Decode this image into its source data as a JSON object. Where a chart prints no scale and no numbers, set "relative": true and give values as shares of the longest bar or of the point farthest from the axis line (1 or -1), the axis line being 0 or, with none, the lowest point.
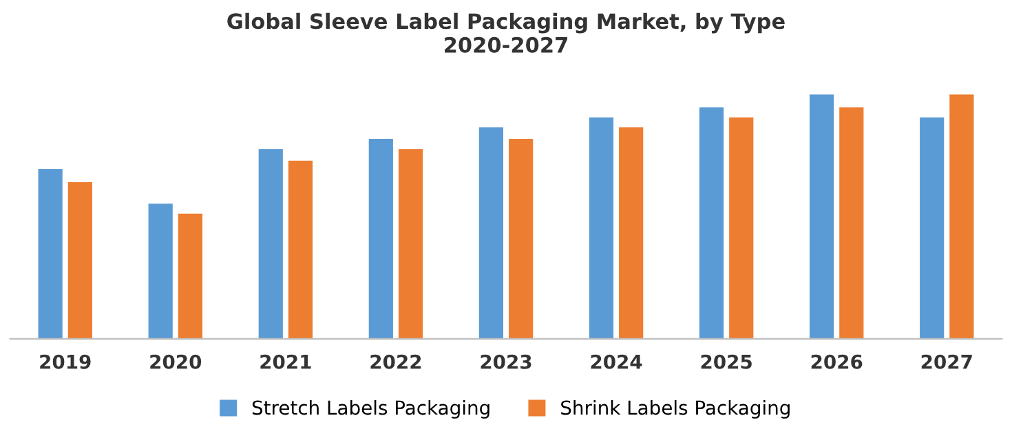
{
  "chart_data": {
    "type": "bar",
    "title": "Global Sleeve Label Packaging Market, by Type\n2020-2027",
    "categories": [
      "2019",
      "2020",
      "2021",
      "2022",
      "2023",
      "2024",
      "2025",
      "2026",
      "2027"
    ],
    "relative": true,
    "legend": "bottom",
    "grid": false,
    "series": [
      {
        "name": "Stretch Labels Packaging",
        "color": "#5b9bd5",
        "values": [
          0.694,
          0.553,
          0.776,
          0.818,
          0.865,
          0.906,
          0.947,
          1.0,
          0.906
        ]
      },
      {
        "name": "Shrink Labels Packaging",
        "color": "#ed7d31",
        "values": [
          0.641,
          0.512,
          0.729,
          0.776,
          0.818,
          0.865,
          0.906,
          0.947,
          1.0
        ]
      }
    ]
  }
}
